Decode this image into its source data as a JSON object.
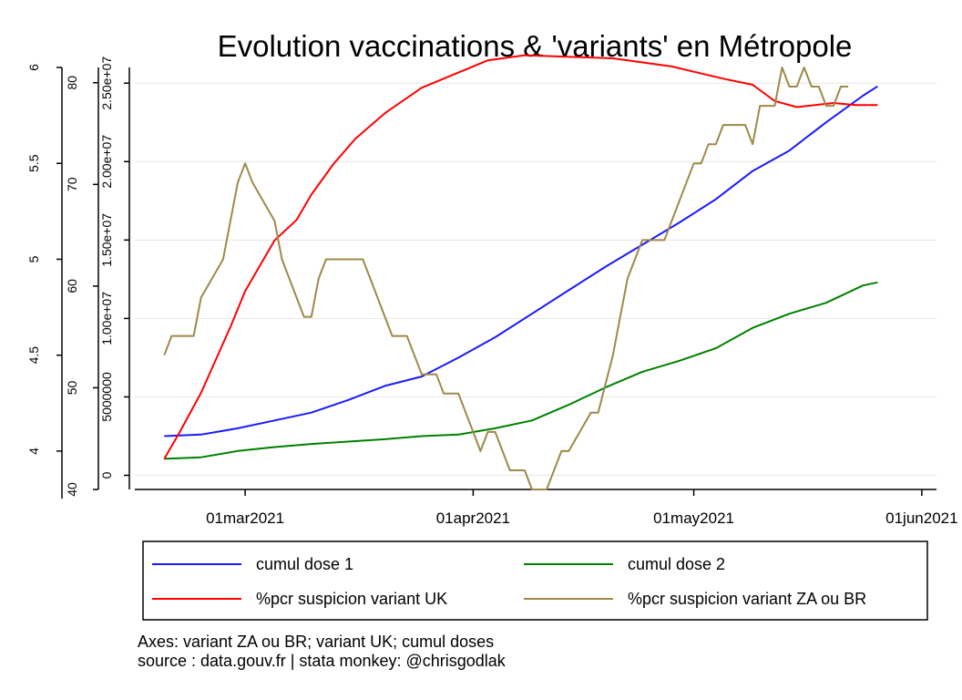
{
  "chart_data": {
    "type": "line",
    "title": "Evolution vaccinations & 'variants' en Métropole",
    "x_axis": {
      "ticks": [
        {
          "date": "2021-03-01",
          "label": "01mar2021"
        },
        {
          "date": "2021-04-01",
          "label": "01apr2021"
        },
        {
          "date": "2021-05-01",
          "label": "01may2021"
        },
        {
          "date": "2021-06-01",
          "label": "01jun2021"
        }
      ],
      "range": [
        "2021-02-14",
        "2021-06-03"
      ]
    },
    "y_axes": [
      {
        "id": "za",
        "range": [
          3.8,
          6.0
        ],
        "ticks": [
          "4",
          "4.5",
          "5",
          "5.5",
          "6"
        ],
        "tick_values": [
          4,
          4.5,
          5,
          5.5,
          6
        ]
      },
      {
        "id": "uk",
        "range": [
          40,
          81.5
        ],
        "ticks": [
          "40",
          "50",
          "60",
          "70",
          "80"
        ],
        "tick_values": [
          40,
          50,
          60,
          70,
          80
        ]
      },
      {
        "id": "doses",
        "range": [
          -900000,
          26000000
        ],
        "ticks": [
          "0",
          "5000000",
          "1.00e+07",
          "1.50e+07",
          "2.00e+07",
          "2.50e+07"
        ],
        "tick_values": [
          0,
          5000000,
          10000000,
          15000000,
          20000000,
          25000000
        ]
      }
    ],
    "grid": true,
    "legend_position": "bottom",
    "series": [
      {
        "name": "cumul dose 1",
        "color": "#1a1aff",
        "axis": "doses",
        "points": [
          [
            "2021-02-18",
            2500000
          ],
          [
            "2021-02-23",
            2600000
          ],
          [
            "2021-02-28",
            3000000
          ],
          [
            "2021-03-05",
            3500000
          ],
          [
            "2021-03-10",
            4000000
          ],
          [
            "2021-03-15",
            4800000
          ],
          [
            "2021-03-20",
            5700000
          ],
          [
            "2021-03-25",
            6300000
          ],
          [
            "2021-03-30",
            7500000
          ],
          [
            "2021-04-04",
            8800000
          ],
          [
            "2021-04-09",
            10300000
          ],
          [
            "2021-04-14",
            11800000
          ],
          [
            "2021-04-19",
            13300000
          ],
          [
            "2021-04-24",
            14700000
          ],
          [
            "2021-04-29",
            16100000
          ],
          [
            "2021-05-04",
            17600000
          ],
          [
            "2021-05-09",
            19400000
          ],
          [
            "2021-05-14",
            20700000
          ],
          [
            "2021-05-19",
            22500000
          ],
          [
            "2021-05-24",
            24200000
          ],
          [
            "2021-05-26",
            24800000
          ]
        ]
      },
      {
        "name": "cumul dose 2",
        "color": "#008000",
        "axis": "doses",
        "points": [
          [
            "2021-02-18",
            1050000
          ],
          [
            "2021-02-23",
            1150000
          ],
          [
            "2021-02-28",
            1550000
          ],
          [
            "2021-03-05",
            1800000
          ],
          [
            "2021-03-10",
            2000000
          ],
          [
            "2021-03-15",
            2150000
          ],
          [
            "2021-03-20",
            2300000
          ],
          [
            "2021-03-25",
            2500000
          ],
          [
            "2021-03-30",
            2600000
          ],
          [
            "2021-04-04",
            3000000
          ],
          [
            "2021-04-09",
            3500000
          ],
          [
            "2021-04-14",
            4500000
          ],
          [
            "2021-04-19",
            5600000
          ],
          [
            "2021-04-24",
            6600000
          ],
          [
            "2021-04-29",
            7300000
          ],
          [
            "2021-05-04",
            8100000
          ],
          [
            "2021-05-09",
            9400000
          ],
          [
            "2021-05-14",
            10300000
          ],
          [
            "2021-05-19",
            11000000
          ],
          [
            "2021-05-24",
            12100000
          ],
          [
            "2021-05-26",
            12300000
          ]
        ]
      },
      {
        "name": "%pcr suspicion variant UK",
        "color": "#ff0000",
        "axis": "uk",
        "points": [
          [
            "2021-02-18",
            43
          ],
          [
            "2021-02-20",
            45.5
          ],
          [
            "2021-02-23",
            49.5
          ],
          [
            "2021-02-27",
            56
          ],
          [
            "2021-03-01",
            59.5
          ],
          [
            "2021-03-05",
            64.5
          ],
          [
            "2021-03-08",
            66.5
          ],
          [
            "2021-03-10",
            69
          ],
          [
            "2021-03-13",
            72
          ],
          [
            "2021-03-16",
            74.5
          ],
          [
            "2021-03-20",
            77
          ],
          [
            "2021-03-25",
            79.5
          ],
          [
            "2021-03-30",
            81
          ],
          [
            "2021-04-03",
            82.2
          ],
          [
            "2021-04-08",
            82.7
          ],
          [
            "2021-04-12",
            82.6
          ],
          [
            "2021-04-20",
            82.4
          ],
          [
            "2021-04-28",
            81.6
          ],
          [
            "2021-05-05",
            80.4
          ],
          [
            "2021-05-09",
            79.8
          ],
          [
            "2021-05-12",
            78.2
          ],
          [
            "2021-05-15",
            77.6
          ],
          [
            "2021-05-20",
            78
          ],
          [
            "2021-05-23",
            77.8
          ],
          [
            "2021-05-26",
            77.8
          ]
        ]
      },
      {
        "name": "%pcr suspicion variant ZA ou BR",
        "color": "#a0884a",
        "axis": "za",
        "points": [
          [
            "2021-02-18",
            4.5
          ],
          [
            "2021-02-19",
            4.6
          ],
          [
            "2021-02-22",
            4.6
          ],
          [
            "2021-02-23",
            4.8
          ],
          [
            "2021-02-26",
            5.0
          ],
          [
            "2021-02-28",
            5.4
          ],
          [
            "2021-03-01",
            5.5
          ],
          [
            "2021-03-02",
            5.4
          ],
          [
            "2021-03-05",
            5.2
          ],
          [
            "2021-03-06",
            5.0
          ],
          [
            "2021-03-09",
            4.7
          ],
          [
            "2021-03-10",
            4.7
          ],
          [
            "2021-03-11",
            4.9
          ],
          [
            "2021-03-12",
            5.0
          ],
          [
            "2021-03-17",
            5.0
          ],
          [
            "2021-03-21",
            4.6
          ],
          [
            "2021-03-23",
            4.6
          ],
          [
            "2021-03-25",
            4.4
          ],
          [
            "2021-03-27",
            4.4
          ],
          [
            "2021-03-28",
            4.3
          ],
          [
            "2021-03-30",
            4.3
          ],
          [
            "2021-03-31",
            4.2
          ],
          [
            "2021-04-01",
            4.1
          ],
          [
            "2021-04-02",
            4.0
          ],
          [
            "2021-04-03",
            4.1
          ],
          [
            "2021-04-04",
            4.1
          ],
          [
            "2021-04-06",
            3.9
          ],
          [
            "2021-04-08",
            3.9
          ],
          [
            "2021-04-09",
            3.8
          ],
          [
            "2021-04-11",
            3.8
          ],
          [
            "2021-04-13",
            4.0
          ],
          [
            "2021-04-14",
            4.0
          ],
          [
            "2021-04-17",
            4.2
          ],
          [
            "2021-04-18",
            4.2
          ],
          [
            "2021-04-20",
            4.5
          ],
          [
            "2021-04-21",
            4.7
          ],
          [
            "2021-04-22",
            4.9
          ],
          [
            "2021-04-24",
            5.1
          ],
          [
            "2021-04-27",
            5.1
          ],
          [
            "2021-04-30",
            5.4
          ],
          [
            "2021-05-01",
            5.5
          ],
          [
            "2021-05-02",
            5.5
          ],
          [
            "2021-05-03",
            5.6
          ],
          [
            "2021-05-04",
            5.6
          ],
          [
            "2021-05-05",
            5.7
          ],
          [
            "2021-05-08",
            5.7
          ],
          [
            "2021-05-09",
            5.6
          ],
          [
            "2021-05-10",
            5.8
          ],
          [
            "2021-05-12",
            5.8
          ],
          [
            "2021-05-13",
            6.0
          ],
          [
            "2021-05-14",
            5.9
          ],
          [
            "2021-05-15",
            5.9
          ],
          [
            "2021-05-16",
            6.0
          ],
          [
            "2021-05-17",
            5.9
          ],
          [
            "2021-05-18",
            5.9
          ],
          [
            "2021-05-19",
            5.8
          ],
          [
            "2021-05-20",
            5.8
          ],
          [
            "2021-05-21",
            5.9
          ],
          [
            "2021-05-22",
            5.9
          ]
        ]
      }
    ],
    "legend": [
      {
        "label": "cumul dose 1",
        "color": "#1a1aff"
      },
      {
        "label": "cumul dose 2",
        "color": "#008000"
      },
      {
        "label": "%pcr suspicion variant UK",
        "color": "#ff0000"
      },
      {
        "label": "%pcr suspicion variant ZA ou BR",
        "color": "#a0884a"
      }
    ],
    "notes": [
      "Axes: variant ZA ou BR; variant UK; cumul doses",
      "source : data.gouv.fr | stata monkey: @chrisgodlak"
    ]
  }
}
